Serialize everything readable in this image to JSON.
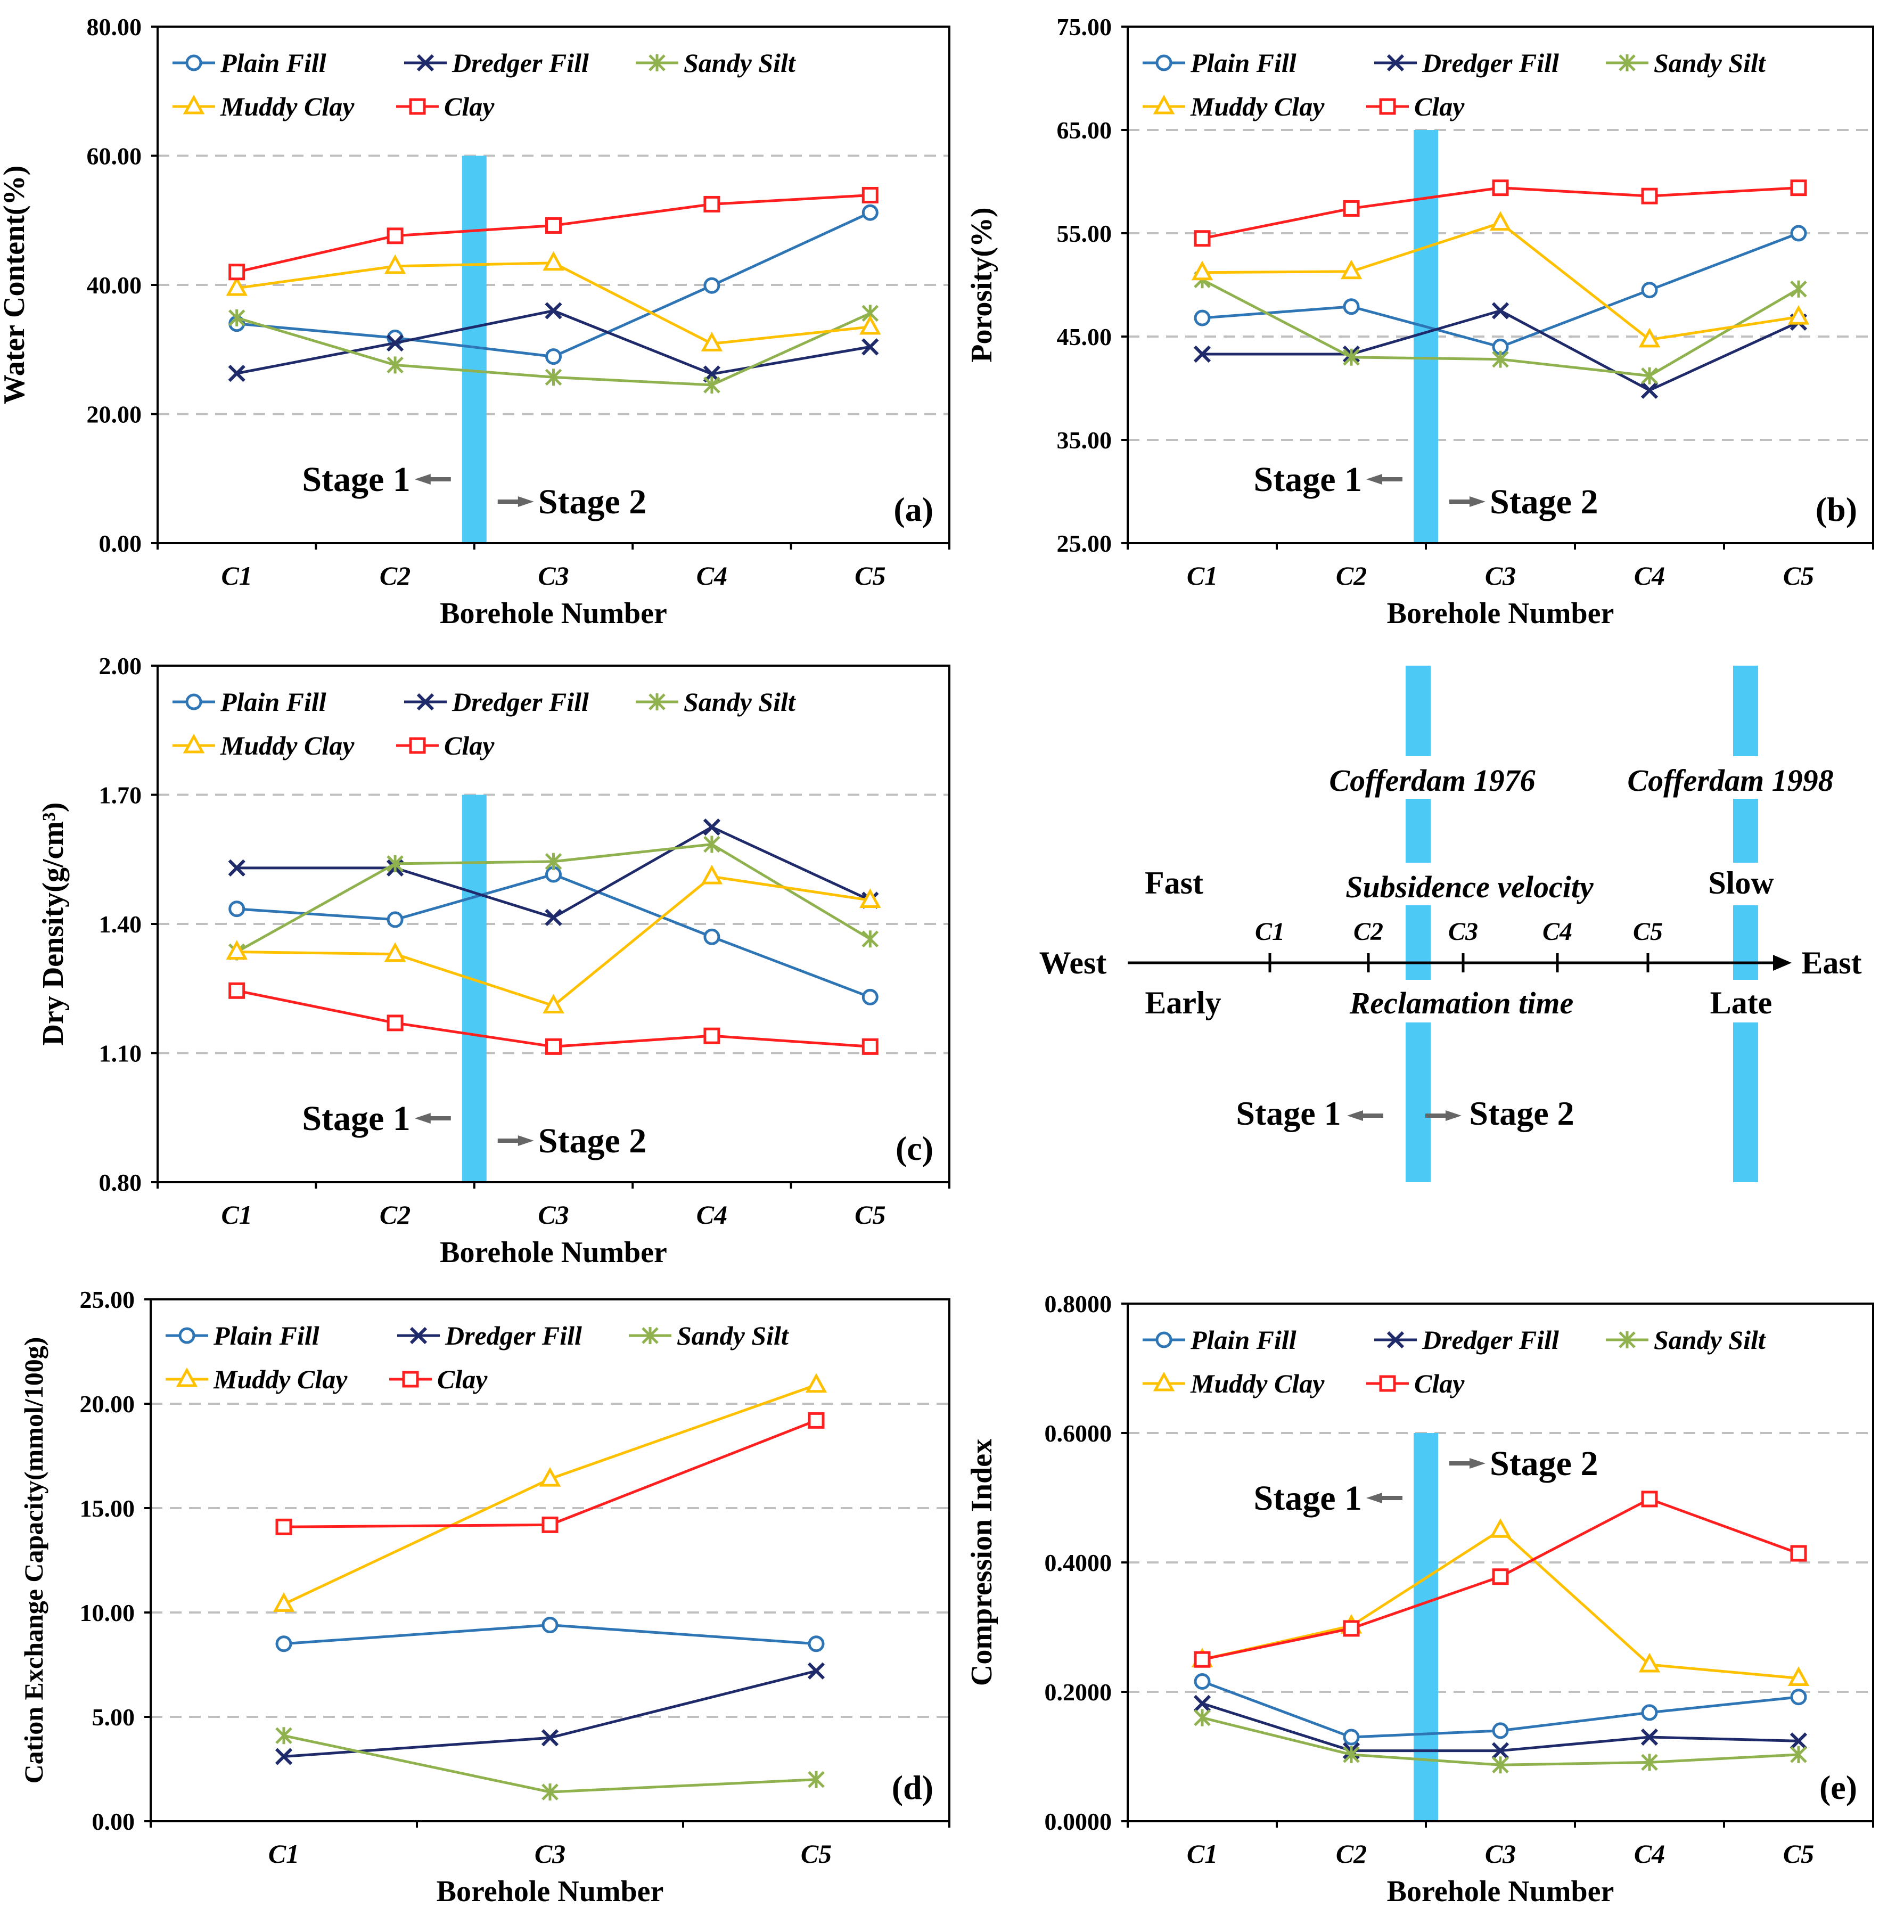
{
  "colors": {
    "plain_fill": "#2E75B6",
    "dredger_fill": "#1F2A6B",
    "sandy_silt": "#8FB14E",
    "muddy_clay": "#FFC000",
    "clay": "#FF1F1F",
    "stage_bar": "#4DC9F6",
    "grid": "#BFBFBF"
  },
  "legend": {
    "plain_fill": "Plain Fill",
    "dredger_fill": "Dredger Fill",
    "sandy_silt": "Sandy Silt",
    "muddy_clay": "Muddy Clay",
    "clay": "Clay"
  },
  "stage": {
    "stage1": "Stage 1",
    "stage2": "Stage 2"
  },
  "chart_data": [
    {
      "id": "a",
      "type": "line",
      "panel_label": "(a)",
      "categories": [
        "C1",
        "C2",
        "C3",
        "C4",
        "C5"
      ],
      "xlabel": "Borehole Number",
      "ylabel": "Water Content(%)",
      "ylim": [
        0,
        80
      ],
      "yticks": [
        "0.00",
        "20.00",
        "40.00",
        "60.00",
        "80.00"
      ],
      "gridlines": [
        20,
        40,
        60
      ],
      "stage_bar": {
        "between": [
          1,
          2
        ],
        "from": 0,
        "to": 60
      },
      "series": [
        {
          "key": "plain_fill",
          "marker": "circle",
          "values": [
            34.0,
            31.8,
            28.9,
            39.9,
            51.2
          ]
        },
        {
          "key": "dredger_fill",
          "marker": "x",
          "values": [
            26.3,
            31.0,
            36.0,
            26.2,
            30.4
          ]
        },
        {
          "key": "sandy_silt",
          "marker": "asterisk",
          "values": [
            34.9,
            27.6,
            25.7,
            24.5,
            35.6
          ]
        },
        {
          "key": "muddy_clay",
          "marker": "triangle",
          "values": [
            39.5,
            42.9,
            43.4,
            30.9,
            33.5
          ]
        },
        {
          "key": "clay",
          "marker": "square",
          "values": [
            42.0,
            47.6,
            49.2,
            52.5,
            53.9
          ]
        }
      ]
    },
    {
      "id": "b",
      "type": "line",
      "panel_label": "(b)",
      "categories": [
        "C1",
        "C2",
        "C3",
        "C4",
        "C5"
      ],
      "xlabel": "Borehole Number",
      "ylabel": "Porosity(%)",
      "ylim": [
        25,
        75
      ],
      "yticks": [
        "25.00",
        "35.00",
        "45.00",
        "55.00",
        "65.00",
        "75.00"
      ],
      "gridlines": [
        35,
        45,
        55,
        65
      ],
      "stage_bar": {
        "between": [
          1,
          2
        ],
        "from": 25,
        "to": 65
      },
      "series": [
        {
          "key": "plain_fill",
          "marker": "circle",
          "values": [
            46.8,
            47.9,
            44.0,
            49.5,
            55.0
          ]
        },
        {
          "key": "dredger_fill",
          "marker": "x",
          "values": [
            43.3,
            43.3,
            47.5,
            39.8,
            46.4
          ]
        },
        {
          "key": "sandy_silt",
          "marker": "asterisk",
          "values": [
            50.5,
            43.0,
            42.8,
            41.2,
            49.6
          ]
        },
        {
          "key": "muddy_clay",
          "marker": "triangle",
          "values": [
            51.2,
            51.3,
            56.0,
            44.7,
            46.9
          ]
        },
        {
          "key": "clay",
          "marker": "square",
          "values": [
            54.5,
            57.4,
            59.4,
            58.6,
            59.4
          ]
        }
      ]
    },
    {
      "id": "c",
      "type": "line",
      "panel_label": "(c)",
      "categories": [
        "C1",
        "C2",
        "C3",
        "C4",
        "C5"
      ],
      "xlabel": "Borehole Number",
      "ylabel": "Dry Density(g/cm³)",
      "ylim": [
        0.8,
        2.0
      ],
      "yticks": [
        "0.80",
        "1.10",
        "1.40",
        "1.70",
        "2.00"
      ],
      "gridlines": [
        1.1,
        1.4,
        1.7
      ],
      "stage_bar": {
        "between": [
          1,
          2
        ],
        "from": 0.8,
        "to": 1.7
      },
      "series": [
        {
          "key": "plain_fill",
          "marker": "circle",
          "values": [
            1.435,
            1.41,
            1.515,
            1.37,
            1.23
          ]
        },
        {
          "key": "dredger_fill",
          "marker": "x",
          "values": [
            1.53,
            1.53,
            1.415,
            1.625,
            1.455
          ]
        },
        {
          "key": "sandy_silt",
          "marker": "asterisk",
          "values": [
            1.335,
            1.54,
            1.545,
            1.585,
            1.365
          ]
        },
        {
          "key": "muddy_clay",
          "marker": "triangle",
          "values": [
            1.335,
            1.33,
            1.21,
            1.51,
            1.455
          ]
        },
        {
          "key": "clay",
          "marker": "square",
          "values": [
            1.245,
            1.17,
            1.115,
            1.14,
            1.115
          ]
        }
      ]
    },
    {
      "id": "d",
      "type": "line",
      "panel_label": "(d)",
      "categories": [
        "C1",
        "C3",
        "C5"
      ],
      "xlabel": "Borehole Number",
      "ylabel": "Cation Exchange Capacity(mmol/100g)",
      "ylim": [
        0,
        25
      ],
      "yticks": [
        "0.00",
        "5.00",
        "10.00",
        "15.00",
        "20.00",
        "25.00"
      ],
      "gridlines": [
        5,
        10,
        15,
        20
      ],
      "series": [
        {
          "key": "plain_fill",
          "marker": "circle",
          "values": [
            8.5,
            9.4,
            8.5
          ]
        },
        {
          "key": "dredger_fill",
          "marker": "x",
          "values": [
            3.1,
            4.0,
            7.2
          ]
        },
        {
          "key": "sandy_silt",
          "marker": "asterisk",
          "values": [
            4.1,
            1.4,
            2.0
          ]
        },
        {
          "key": "muddy_clay",
          "marker": "triangle",
          "values": [
            10.4,
            16.4,
            20.9
          ]
        },
        {
          "key": "clay",
          "marker": "square",
          "values": [
            14.1,
            14.2,
            19.2
          ]
        }
      ]
    },
    {
      "id": "e",
      "type": "line",
      "panel_label": "(e)",
      "categories": [
        "C1",
        "C2",
        "C3",
        "C4",
        "C5"
      ],
      "xlabel": "Borehole Number",
      "ylabel": "Compression Index",
      "ylim": [
        0,
        0.8
      ],
      "yticks": [
        "0.0000",
        "0.2000",
        "0.4000",
        "0.6000",
        "0.8000"
      ],
      "gridlines": [
        0.2,
        0.4,
        0.6
      ],
      "stage_bar": {
        "between": [
          1,
          2
        ],
        "from": 0,
        "to": 0.6
      },
      "series": [
        {
          "key": "plain_fill",
          "marker": "circle",
          "values": [
            0.216,
            0.13,
            0.14,
            0.168,
            0.192
          ]
        },
        {
          "key": "dredger_fill",
          "marker": "x",
          "values": [
            0.182,
            0.109,
            0.109,
            0.13,
            0.124
          ]
        },
        {
          "key": "sandy_silt",
          "marker": "asterisk",
          "values": [
            0.16,
            0.103,
            0.087,
            0.091,
            0.103
          ]
        },
        {
          "key": "muddy_clay",
          "marker": "triangle",
          "values": [
            0.25,
            0.302,
            0.45,
            0.242,
            0.221
          ]
        },
        {
          "key": "clay",
          "marker": "square",
          "values": [
            0.25,
            0.298,
            0.378,
            0.498,
            0.414
          ]
        }
      ]
    }
  ],
  "schematic": {
    "west": "West",
    "east": "East",
    "fast": "Fast",
    "slow": "Slow",
    "early": "Early",
    "late": "Late",
    "subsidence_velocity": "Subsidence velocity",
    "reclamation_time": "Reclamation time",
    "cofferdam_1976": "Cofferdam 1976",
    "cofferdam_1998": "Cofferdam 1998",
    "boreholes": [
      "C1",
      "C2",
      "C3",
      "C4",
      "C5"
    ],
    "stage1": "Stage 1",
    "stage2": "Stage 2"
  }
}
